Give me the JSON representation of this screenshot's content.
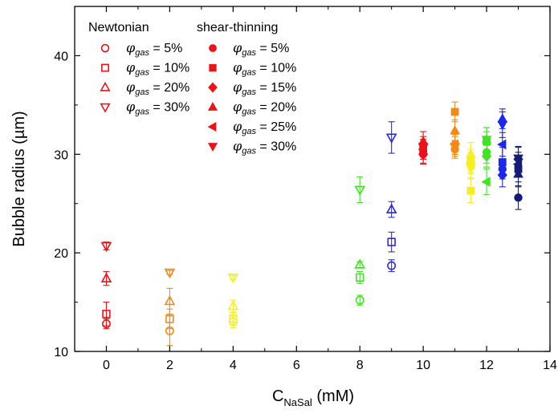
{
  "chart_data": {
    "type": "scatter",
    "xlabel": "C",
    "xlabel_sub": "NaSal",
    "xlabel_unit": " (mM)",
    "ylabel": "Bubble radius (µm)",
    "xlim": [
      -1,
      14
    ],
    "ylim": [
      10,
      45
    ],
    "xticks": [
      0,
      2,
      4,
      6,
      8,
      10,
      12,
      14
    ],
    "yticks": [
      10,
      20,
      30,
      40
    ],
    "legend_placement": "top-left",
    "colors": {
      "0": "#e8141a",
      "2": "#f08a1c",
      "4": "#f4ee2a",
      "8": "#44e02a",
      "9": "#2a28d8",
      "10": "#e8141a",
      "11": "#f08a1c",
      "11.5": "#f4ee2a",
      "12": "#44e02a",
      "12.5": "#1c28e8",
      "13": "#141c78"
    },
    "legend": {
      "newtonian_title": "Newtonian",
      "shear_title": "shear-thinning",
      "symbol": "φ",
      "subscript": "gas",
      "newtonian_entries": [
        {
          "marker": "circle-open",
          "value": "5%"
        },
        {
          "marker": "square-open",
          "value": "10%"
        },
        {
          "marker": "triangle-up-open",
          "value": "20%"
        },
        {
          "marker": "triangle-down-open",
          "value": "30%"
        }
      ],
      "shear_entries": [
        {
          "marker": "circle",
          "value": "5%"
        },
        {
          "marker": "square",
          "value": "10%"
        },
        {
          "marker": "diamond",
          "value": "15%"
        },
        {
          "marker": "triangle-up",
          "value": "20%"
        },
        {
          "marker": "triangle-left",
          "value": "25%"
        },
        {
          "marker": "triangle-down",
          "value": "30%"
        }
      ]
    },
    "series": [
      {
        "marker": "circle-open",
        "points": [
          {
            "x": 0,
            "y": 12.8,
            "err": 0.5
          },
          {
            "x": 2,
            "y": 12.1,
            "err": 1.5
          },
          {
            "x": 4,
            "y": 13.0,
            "err": 0.6
          },
          {
            "x": 8,
            "y": 15.2,
            "err": 0.5
          },
          {
            "x": 9,
            "y": 18.7,
            "err": 0.6
          }
        ]
      },
      {
        "marker": "square-open",
        "points": [
          {
            "x": 0,
            "y": 13.8,
            "err": 1.2
          },
          {
            "x": 2,
            "y": 13.3,
            "err": 1.0
          },
          {
            "x": 4,
            "y": 13.3,
            "err": 0.6
          },
          {
            "x": 8,
            "y": 17.5,
            "err": 0.6
          },
          {
            "x": 9,
            "y": 21.1,
            "err": 1.0
          }
        ]
      },
      {
        "marker": "triangle-up-open",
        "points": [
          {
            "x": 0,
            "y": 17.4,
            "err": 0.7
          },
          {
            "x": 2,
            "y": 15.1,
            "err": 1.3
          },
          {
            "x": 4,
            "y": 14.6,
            "err": 0.6
          },
          {
            "x": 8,
            "y": 18.8,
            "err": 0.3
          },
          {
            "x": 9,
            "y": 24.4,
            "err": 0.8
          }
        ]
      },
      {
        "marker": "triangle-down-open",
        "points": [
          {
            "x": 0,
            "y": 20.7,
            "err": 0.4
          },
          {
            "x": 2,
            "y": 18.0,
            "err": 0.2
          },
          {
            "x": 4,
            "y": 17.5,
            "err": 0.2
          },
          {
            "x": 8,
            "y": 26.4,
            "err": 1.3
          },
          {
            "x": 9,
            "y": 31.7,
            "err": 1.6
          }
        ]
      },
      {
        "marker": "circle",
        "points": [
          {
            "x": 10,
            "y": 30.0,
            "err": 1.0
          },
          {
            "x": 11,
            "y": 30.5,
            "err": 0.9
          },
          {
            "x": 11.5,
            "y": 29.5,
            "err": 1.0
          },
          {
            "x": 12,
            "y": 30.2,
            "err": 1.1
          },
          {
            "x": 12.5,
            "y": 28.5,
            "err": 1.0
          },
          {
            "x": 13,
            "y": 25.6,
            "err": 1.2
          }
        ]
      },
      {
        "marker": "square",
        "points": [
          {
            "x": 10,
            "y": 30.5,
            "err": 1.0
          },
          {
            "x": 11,
            "y": 34.3,
            "err": 1.0
          },
          {
            "x": 11.5,
            "y": 26.3,
            "err": 1.2
          },
          {
            "x": 12,
            "y": 31.3,
            "err": 1.0
          },
          {
            "x": 12.5,
            "y": 29.2,
            "err": 1.5
          },
          {
            "x": 13,
            "y": 28.5,
            "err": 1.3
          }
        ]
      },
      {
        "marker": "diamond",
        "points": [
          {
            "x": 10,
            "y": 30.0,
            "err": 0.9
          },
          {
            "x": 11,
            "y": 31.0,
            "err": 1.0
          },
          {
            "x": 11.5,
            "y": 29.2,
            "err": 1.0
          },
          {
            "x": 12,
            "y": 29.8,
            "err": 1.1
          },
          {
            "x": 12.5,
            "y": 27.9,
            "err": 1.2
          },
          {
            "x": 13,
            "y": 29.5,
            "err": 1.2
          }
        ]
      },
      {
        "marker": "triangle-up",
        "points": [
          {
            "x": 10,
            "y": 31.3,
            "err": 1.0
          },
          {
            "x": 11,
            "y": 32.4,
            "err": 1.1
          },
          {
            "x": 11.5,
            "y": 30.0,
            "err": 1.2
          },
          {
            "x": 12,
            "y": 31.5,
            "err": 1.2
          },
          {
            "x": 12.5,
            "y": 33.6,
            "err": 1.0
          },
          {
            "x": 13,
            "y": 28.0,
            "err": 1.3
          }
        ]
      },
      {
        "marker": "triangle-left",
        "points": [
          {
            "x": 10,
            "y": 30.5,
            "err": 1.0
          },
          {
            "x": 11,
            "y": 31.0,
            "err": 1.0
          },
          {
            "x": 11.5,
            "y": 29.0,
            "err": 1.0
          },
          {
            "x": 12,
            "y": 27.2,
            "err": 1.3
          },
          {
            "x": 12.5,
            "y": 31.0,
            "err": 1.2
          },
          {
            "x": 13,
            "y": 29.0,
            "err": 1.2
          }
        ]
      },
      {
        "marker": "triangle-down",
        "points": [
          {
            "x": 10,
            "y": 30.8,
            "err": 1.0
          },
          {
            "x": 11,
            "y": 30.8,
            "err": 1.0
          },
          {
            "x": 11.5,
            "y": 28.6,
            "err": 1.0
          },
          {
            "x": 12,
            "y": 31.5,
            "err": 1.2
          },
          {
            "x": 12.5,
            "y": 33.0,
            "err": 1.3
          },
          {
            "x": 13,
            "y": 29.6,
            "err": 1.2
          }
        ]
      }
    ]
  }
}
